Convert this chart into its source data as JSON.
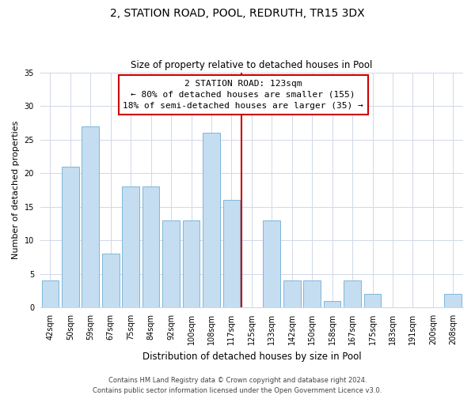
{
  "title": "2, STATION ROAD, POOL, REDRUTH, TR15 3DX",
  "subtitle": "Size of property relative to detached houses in Pool",
  "xlabel": "Distribution of detached houses by size in Pool",
  "ylabel": "Number of detached properties",
  "bar_labels": [
    "42sqm",
    "50sqm",
    "59sqm",
    "67sqm",
    "75sqm",
    "84sqm",
    "92sqm",
    "100sqm",
    "108sqm",
    "117sqm",
    "125sqm",
    "133sqm",
    "142sqm",
    "150sqm",
    "158sqm",
    "167sqm",
    "175sqm",
    "183sqm",
    "191sqm",
    "200sqm",
    "208sqm"
  ],
  "bar_values": [
    4,
    21,
    27,
    8,
    18,
    18,
    13,
    13,
    26,
    16,
    0,
    13,
    4,
    4,
    1,
    4,
    2,
    0,
    0,
    0,
    2
  ],
  "bar_color": "#c5ddf0",
  "bar_edge_color": "#7eb6d9",
  "annotation_title": "2 STATION ROAD: 123sqm",
  "annotation_line1": "← 80% of detached houses are smaller (155)",
  "annotation_line2": "18% of semi-detached houses are larger (35) →",
  "annotation_box_color": "#ffffff",
  "annotation_box_edge_color": "#cc0000",
  "vline_color": "#cc0000",
  "vline_x": 9.5,
  "ylim": [
    0,
    35
  ],
  "yticks": [
    0,
    5,
    10,
    15,
    20,
    25,
    30,
    35
  ],
  "footer_line1": "Contains HM Land Registry data © Crown copyright and database right 2024.",
  "footer_line2": "Contains public sector information licensed under the Open Government Licence v3.0.",
  "bg_color": "#ffffff",
  "grid_color": "#d0d8e8",
  "title_fontsize": 10,
  "subtitle_fontsize": 8.5,
  "ylabel_fontsize": 8,
  "xlabel_fontsize": 8.5,
  "tick_fontsize": 7,
  "annotation_fontsize": 8,
  "footer_fontsize": 6
}
